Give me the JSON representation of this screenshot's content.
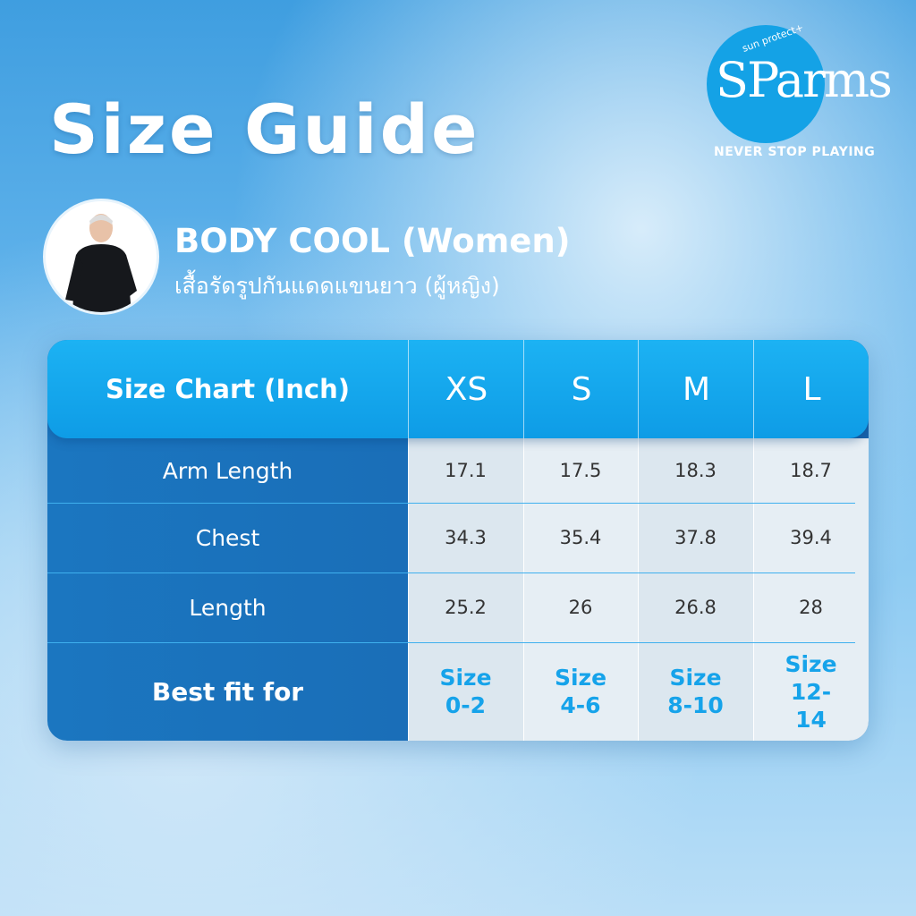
{
  "header": {
    "title": "Size Guide"
  },
  "logo": {
    "small": "sun protect+",
    "wordmark": "SParms",
    "tagline": "NEVER STOP PLAYING"
  },
  "product": {
    "name": "BODY COOL (Women)",
    "subtitle": "เสื้อรัดรูปกันแดดแขนยาว (ผู้หญิง)"
  },
  "table": {
    "header": [
      "Size Chart (Inch)",
      "XS",
      "S",
      "M",
      "L"
    ],
    "rows": [
      [
        "Arm Length",
        "17.1",
        "17.5",
        "18.3",
        "18.7"
      ],
      [
        "Chest",
        "34.3",
        "35.4",
        "37.8",
        "39.4"
      ],
      [
        "Length",
        "25.2",
        "26",
        "26.8",
        "28"
      ],
      [
        "Best fit for",
        "Size 0-2",
        "Size 4-6",
        "Size 8-10",
        "Size 12-14"
      ]
    ]
  }
}
